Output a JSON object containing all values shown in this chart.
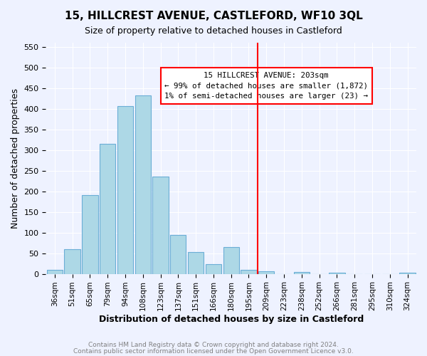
{
  "title": "15, HILLCREST AVENUE, CASTLEFORD, WF10 3QL",
  "subtitle": "Size of property relative to detached houses in Castleford",
  "xlabel": "Distribution of detached houses by size in Castleford",
  "ylabel": "Number of detached properties",
  "bar_labels": [
    "36sqm",
    "51sqm",
    "65sqm",
    "79sqm",
    "94sqm",
    "108sqm",
    "123sqm",
    "137sqm",
    "151sqm",
    "166sqm",
    "180sqm",
    "195sqm",
    "209sqm",
    "223sqm",
    "238sqm",
    "252sqm",
    "266sqm",
    "281sqm",
    "295sqm",
    "310sqm",
    "324sqm"
  ],
  "bar_values": [
    10,
    59,
    190,
    315,
    407,
    432,
    235,
    95,
    52,
    24,
    65,
    10,
    7,
    0,
    5,
    0,
    3,
    0,
    0,
    0,
    2
  ],
  "bar_color": "#add8e6",
  "bar_edge_color": "#6baed6",
  "ylim": [
    0,
    560
  ],
  "yticks": [
    0,
    50,
    100,
    150,
    200,
    250,
    300,
    350,
    400,
    450,
    500,
    550
  ],
  "annotation_title": "15 HILLCREST AVENUE: 203sqm",
  "annotation_line1": "← 99% of detached houses are smaller (1,872)",
  "annotation_line2": "1% of semi-detached houses are larger (23) →",
  "vline_x": 11.5,
  "footer1": "Contains HM Land Registry data © Crown copyright and database right 2024.",
  "footer2": "Contains public sector information licensed under the Open Government Licence v3.0.",
  "background_color": "#eef2ff"
}
